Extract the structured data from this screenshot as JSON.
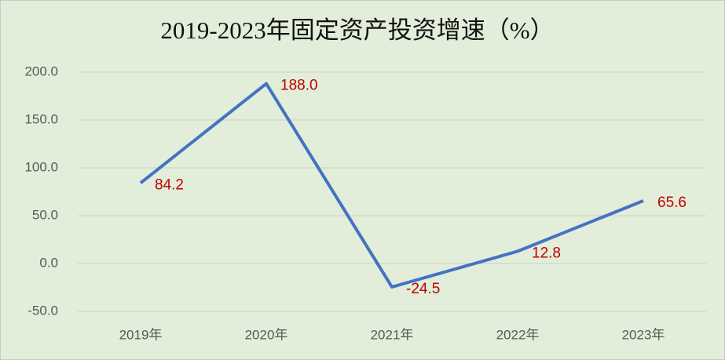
{
  "chart_data": {
    "type": "line",
    "title": "2019-2023年固定资产投资增速（%）",
    "categories": [
      "2019年",
      "2020年",
      "2021年",
      "2022年",
      "2023年"
    ],
    "values": [
      84.2,
      188.0,
      -24.5,
      12.8,
      65.6
    ],
    "value_labels": [
      "84.2",
      "188.0",
      "-24.5",
      "12.8",
      "65.6"
    ],
    "color": "#4472c4",
    "label_color": "#c00000",
    "ylim": [
      -50,
      200
    ],
    "yticks": [
      {
        "value": -50,
        "label": "-50.0"
      },
      {
        "value": 0,
        "label": "0.0"
      },
      {
        "value": 50,
        "label": "50.0"
      },
      {
        "value": 100,
        "label": "100.0"
      },
      {
        "value": 150,
        "label": "150.0"
      },
      {
        "value": 200,
        "label": "200.0"
      }
    ],
    "grid": true
  }
}
